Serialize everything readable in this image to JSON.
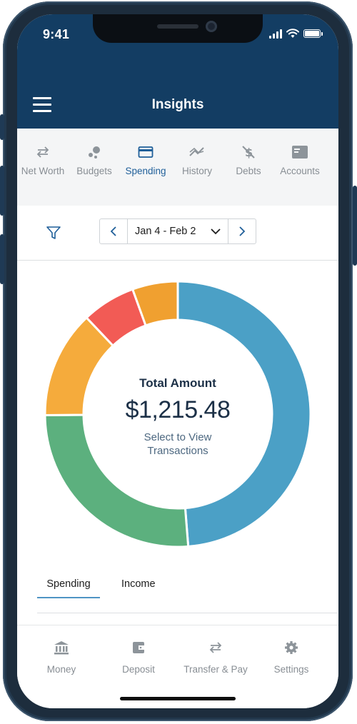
{
  "status_bar": {
    "time": "9:41"
  },
  "header": {
    "title": "Insights"
  },
  "tabs": [
    {
      "label": "Net Worth",
      "icon": "transfer-arrows-icon"
    },
    {
      "label": "Budgets",
      "icon": "budget-dots-icon"
    },
    {
      "label": "Spending",
      "icon": "card-icon",
      "active": true
    },
    {
      "label": "History",
      "icon": "trend-icon"
    },
    {
      "label": "Debts",
      "icon": "dollar-slash-icon"
    },
    {
      "label": "Accounts",
      "icon": "account-card-icon"
    }
  ],
  "date_range": {
    "label": "Jan 4 - Feb 2"
  },
  "summary": {
    "total_label": "Total Amount",
    "total_amount": "$1,215.48",
    "select_line1": "Select to View",
    "select_line2": "Transactions"
  },
  "chart_data": {
    "type": "pie",
    "donut": true,
    "slices": [
      {
        "value": 48.5,
        "color": "#4ba0c6"
      },
      {
        "value": 26.0,
        "color": "#5cb07e"
      },
      {
        "value": 13.0,
        "color": "#f5ab3c"
      },
      {
        "value": 6.5,
        "color": "#f25b55"
      },
      {
        "value": 5.5,
        "color": "#f0a030"
      }
    ]
  },
  "sub_tabs": [
    {
      "label": "Spending",
      "active": true
    },
    {
      "label": "Income"
    }
  ],
  "bottom_nav": [
    {
      "label": "Money",
      "icon": "bank-icon"
    },
    {
      "label": "Deposit",
      "icon": "wallet-icon"
    },
    {
      "label": "Transfer & Pay",
      "icon": "transfer-arrows-icon"
    },
    {
      "label": "Settings",
      "icon": "gear-icon"
    }
  ],
  "colors": {
    "header_bg": "#133d63",
    "accent": "#1f5f99",
    "muted": "#888e94"
  }
}
